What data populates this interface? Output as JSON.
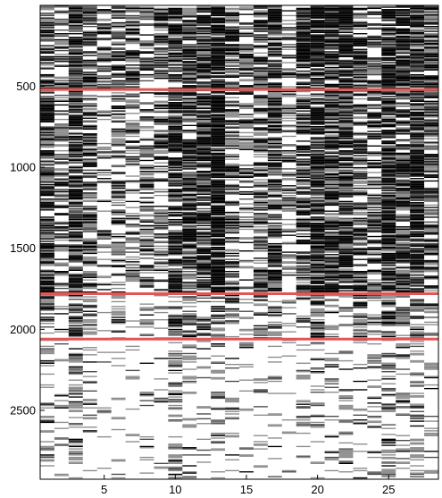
{
  "chart_data": {
    "type": "heatmap",
    "title": "",
    "xlabel": "",
    "ylabel": "",
    "x_range": [
      1,
      28
    ],
    "y_range": [
      1,
      2925
    ],
    "x_ticks": [
      5,
      10,
      15,
      20,
      25
    ],
    "y_ticks": [
      500,
      1000,
      1500,
      2000,
      2500
    ],
    "x_tick_labels": [
      "5",
      "10",
      "15",
      "20",
      "25"
    ],
    "y_tick_labels": [
      "500",
      "1000",
      "1500",
      "2000",
      "2500"
    ],
    "colormap": "grayscale",
    "columns": 28,
    "rows": 2925,
    "column_density": [
      [
        0.55,
        0.65,
        0.35,
        0.2
      ],
      [
        0.4,
        0.45,
        0.18,
        0.12
      ],
      [
        0.7,
        0.75,
        0.5,
        0.28
      ],
      [
        0.6,
        0.5,
        0.25,
        0.16
      ],
      [
        0.38,
        0.18,
        0.08,
        0.06
      ],
      [
        0.55,
        0.4,
        0.25,
        0.14
      ],
      [
        0.5,
        0.3,
        0.08,
        0.06
      ],
      [
        0.42,
        0.38,
        0.12,
        0.1
      ],
      [
        0.52,
        0.46,
        0.14,
        0.06
      ],
      [
        0.62,
        0.68,
        0.42,
        0.28
      ],
      [
        0.7,
        0.62,
        0.3,
        0.14
      ],
      [
        0.64,
        0.72,
        0.36,
        0.16
      ],
      [
        0.92,
        0.95,
        0.48,
        0.18
      ],
      [
        0.58,
        0.48,
        0.28,
        0.18
      ],
      [
        0.45,
        0.38,
        0.18,
        0.08
      ],
      [
        0.55,
        0.5,
        0.35,
        0.12
      ],
      [
        0.68,
        0.6,
        0.24,
        0.1
      ],
      [
        0.38,
        0.3,
        0.12,
        0.06
      ],
      [
        0.8,
        0.58,
        0.24,
        0.16
      ],
      [
        0.92,
        0.82,
        0.52,
        0.16
      ],
      [
        0.8,
        0.68,
        0.3,
        0.16
      ],
      [
        0.88,
        0.64,
        0.26,
        0.12
      ],
      [
        0.62,
        0.52,
        0.4,
        0.18
      ],
      [
        0.5,
        0.5,
        0.32,
        0.18
      ],
      [
        0.85,
        0.76,
        0.6,
        0.3
      ],
      [
        0.64,
        0.6,
        0.42,
        0.22
      ],
      [
        0.7,
        0.82,
        0.4,
        0.24
      ],
      [
        0.62,
        0.5,
        0.22,
        0.14
      ]
    ],
    "density_band_boundaries": [
      1,
      520,
      1780,
      2060,
      2925
    ],
    "reference_lines": [
      {
        "y": 520,
        "color": "#e05555"
      },
      {
        "y": 1780,
        "color": "#e05555"
      },
      {
        "y": 2060,
        "color": "#e05555"
      }
    ],
    "grid": false,
    "legend": "none"
  }
}
